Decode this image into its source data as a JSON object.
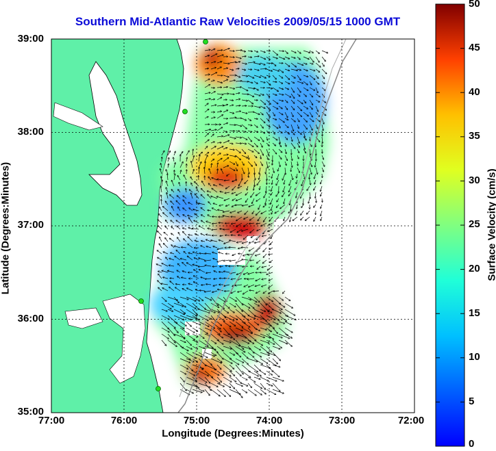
{
  "title": "Southern Mid-Atlantic Raw Velocities 2009/05/15 1000 GMT",
  "x_axis": {
    "label": "Longitude (Degrees:Minutes)",
    "ticks": [
      "77:00",
      "76:00",
      "75:00",
      "74:00",
      "73:00",
      "72:00"
    ]
  },
  "y_axis": {
    "label": "Latitude (Degrees:Minutes)",
    "ticks": [
      "39:00",
      "38:00",
      "37:00",
      "36:00",
      "35:00"
    ]
  },
  "colorbar": {
    "label": "Surface Velocity (cm/s)",
    "ticks": [
      "50",
      "45",
      "40",
      "35",
      "30",
      "25",
      "20",
      "15",
      "10",
      "5",
      "0"
    ],
    "range": [
      0,
      50
    ],
    "colormap": "jet"
  },
  "map": {
    "lon_range": [
      -77,
      -72
    ],
    "lat_range": [
      35,
      39
    ],
    "grid": true,
    "land_color": "#5ff0a8",
    "water_color": "#ffffff",
    "station_color": "#22dd22"
  },
  "chart_data": {
    "type": "heatmap",
    "title": "Southern Mid-Atlantic Raw Velocities 2009/05/15 1000 GMT",
    "xlabel": "Longitude (Degrees:Minutes)",
    "ylabel": "Latitude (Degrees:Minutes)",
    "xlim": [
      -77,
      -72
    ],
    "ylim": [
      35,
      39
    ],
    "clim": [
      0,
      50
    ],
    "colorbar_label": "Surface Velocity (cm/s)",
    "stations": [
      {
        "lon": -74.9,
        "lat": 39.0
      },
      {
        "lon": -75.15,
        "lat": 38.22
      },
      {
        "lon": -75.7,
        "lat": 36.2
      },
      {
        "lon": -75.5,
        "lat": 35.25
      }
    ],
    "velocity_regions": [
      {
        "lon": -74.8,
        "lat": 38.8,
        "speed": 38
      },
      {
        "lon": -74.0,
        "lat": 38.65,
        "speed": 14
      },
      {
        "lon": -73.6,
        "lat": 38.0,
        "speed": 6
      },
      {
        "lon": -74.55,
        "lat": 37.4,
        "speed": 38
      },
      {
        "lon": -74.4,
        "lat": 36.95,
        "speed": 46
      },
      {
        "lon": -75.4,
        "lat": 37.3,
        "speed": 12
      },
      {
        "lon": -75.2,
        "lat": 36.6,
        "speed": 10
      },
      {
        "lon": -74.1,
        "lat": 36.2,
        "speed": 36
      },
      {
        "lon": -74.6,
        "lat": 35.8,
        "speed": 46
      },
      {
        "lon": -75.1,
        "lat": 35.4,
        "speed": 34
      }
    ]
  }
}
